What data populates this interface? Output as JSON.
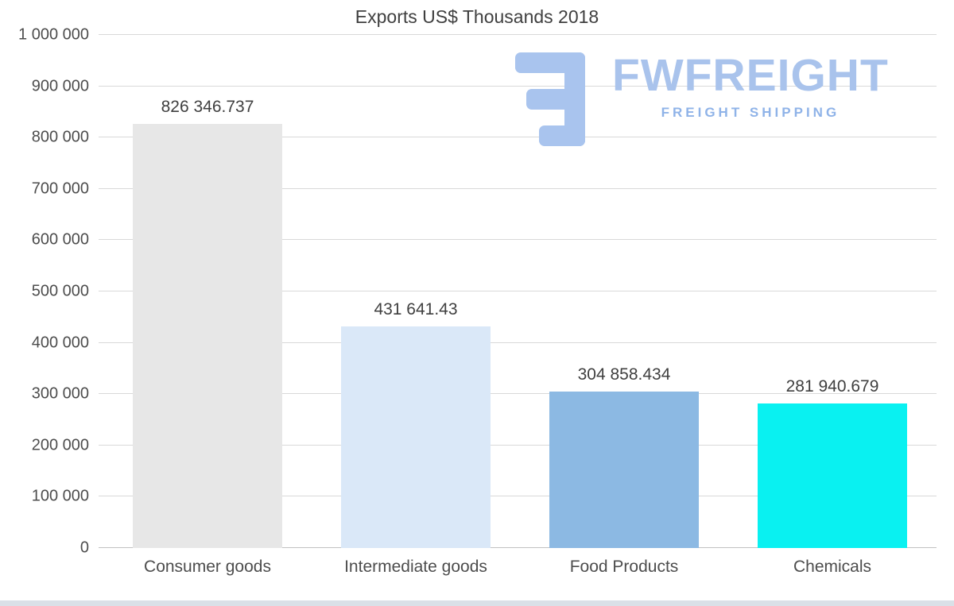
{
  "title": "Exports US$ Thousands 2018",
  "watermark": {
    "brand": "FWFREIGHT",
    "tagline": "FREIGHT SHIPPING",
    "brand_color": "#a9c3ec",
    "tagline_color": "#8fb3e8"
  },
  "chart_data": {
    "type": "bar",
    "title": "Exports US$ Thousands 2018",
    "categories": [
      "Consumer goods",
      "Intermediate goods",
      "Food Products",
      "Chemicals"
    ],
    "values": [
      826346.737,
      431641.43,
      304858.434,
      281940.679
    ],
    "value_labels": [
      "826 346.737",
      "431 641.43",
      "304 858.434",
      "281 940.679"
    ],
    "colors": [
      "#e7e7e7",
      "#dae8f8",
      "#8cb9e3",
      "#09f1f1"
    ],
    "xlabel": "",
    "ylabel": "",
    "ylim": [
      0,
      1000000
    ],
    "y_ticks": [
      "0",
      "100 000",
      "200 000",
      "300 000",
      "400 000",
      "500 000",
      "600 000",
      "700 000",
      "800 000",
      "900 000",
      "1 000 000"
    ],
    "grid": true,
    "legend": false
  }
}
